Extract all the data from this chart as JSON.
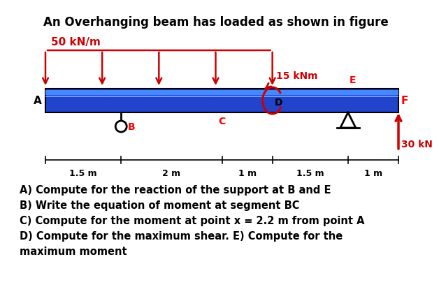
{
  "title": "An Overhanging beam has loaded as shown in figure",
  "title_fontsize": 12,
  "bg_color": "#ffffff",
  "beam_color": "#2244cc",
  "beam_top_color": "#4488ff",
  "label_A": "A",
  "label_B": "B",
  "label_C": "C",
  "label_D": "D",
  "label_E": "E",
  "label_F": "F",
  "dist_load_label": "50 kN/m",
  "dist_load_color": "#cc0000",
  "moment_label": "15 kNm",
  "moment_color": "#cc0000",
  "point_load_label": "30 kN",
  "point_load_color": "#cc0000",
  "dim_labels": [
    "1.5 m",
    "2 m",
    "1 m",
    "1.5 m",
    "1 m"
  ],
  "questions": [
    "A) Compute for the reaction of the support at B and E",
    "B) Write the equation of moment at segment BC",
    "C) Compute for the moment at point x = 2.2 m from point A",
    "D) Compute for the maximum shear. E) Compute for the",
    "maximum moment"
  ],
  "q_fontsize": 10.5
}
